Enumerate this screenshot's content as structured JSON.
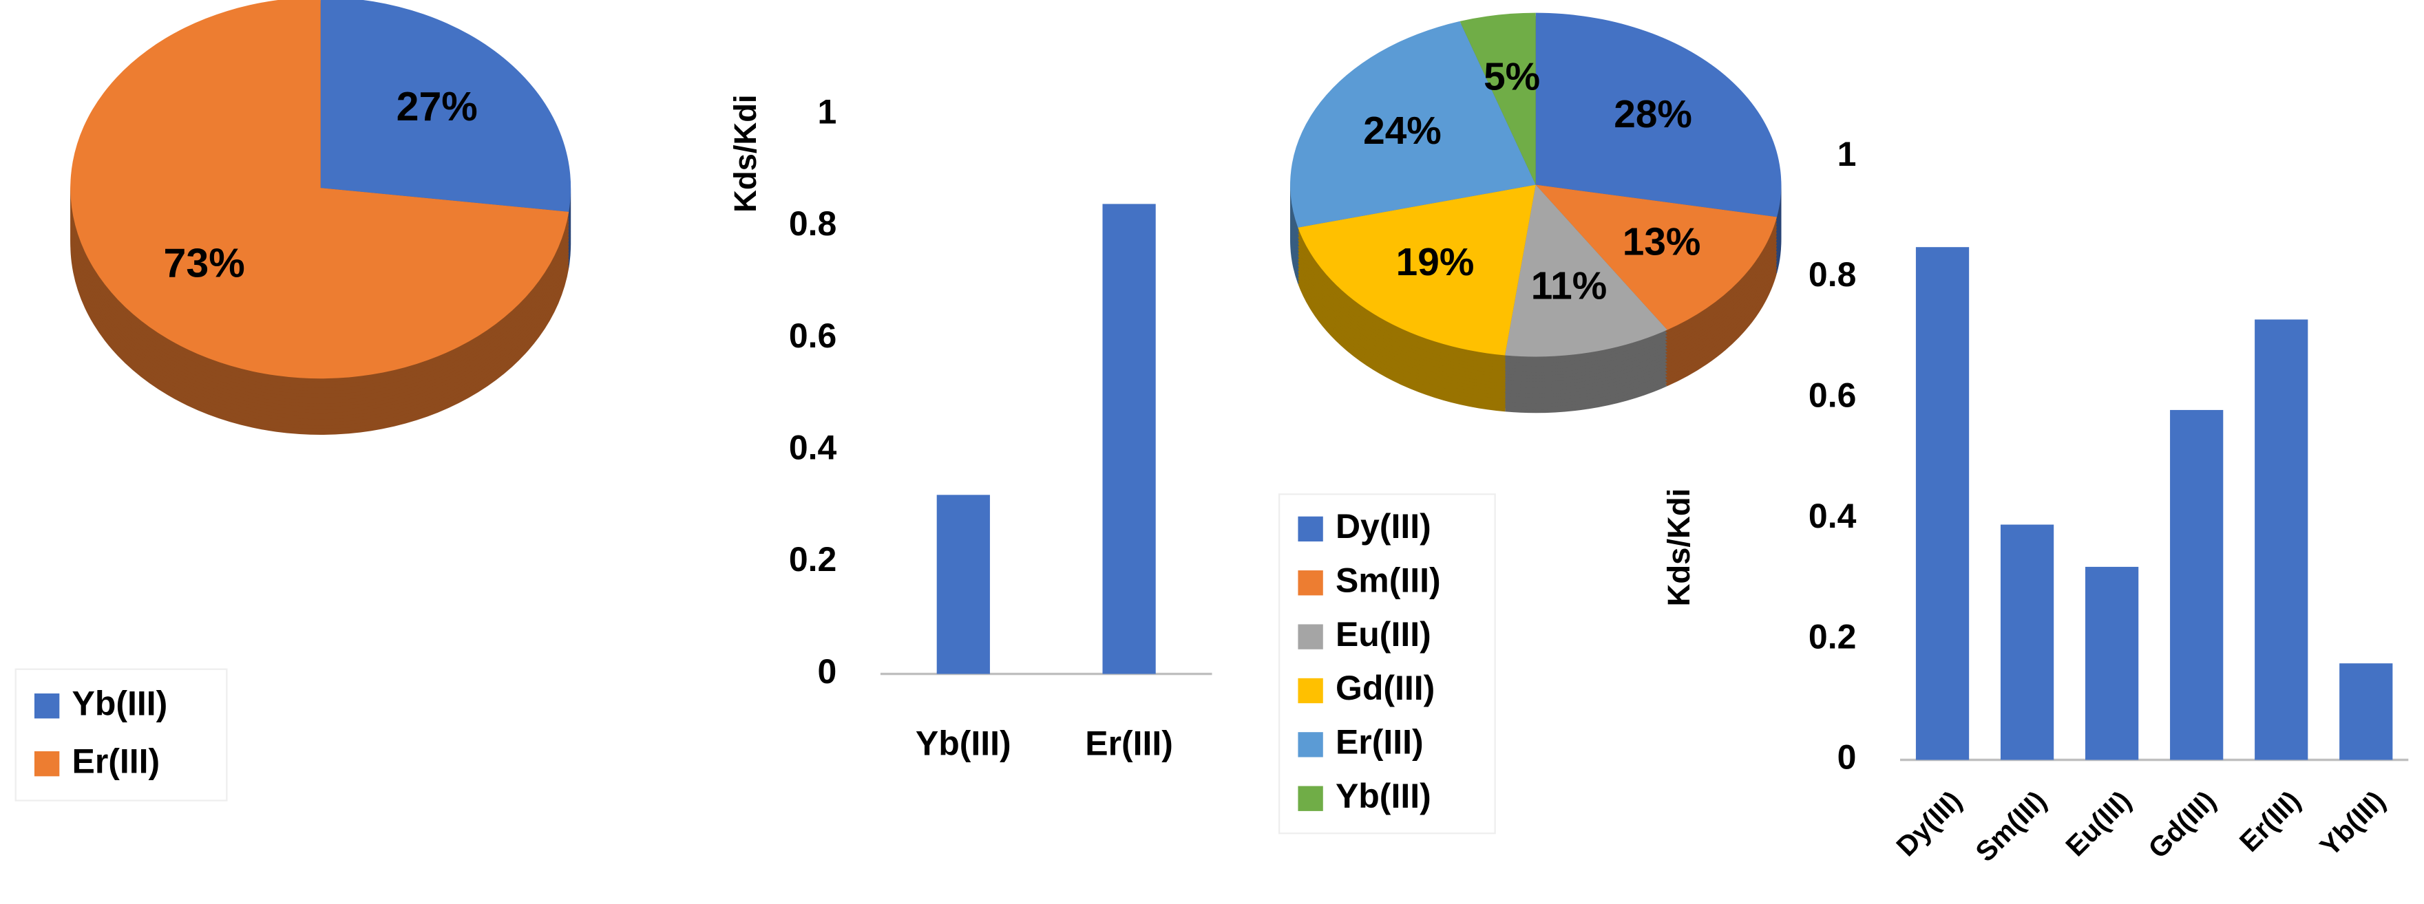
{
  "chart_data": [
    {
      "type": "pie",
      "categories": [
        "Yb(III)",
        "Er(III)"
      ],
      "values": [
        27,
        73
      ],
      "value_labels": [
        "27%",
        "73%"
      ],
      "colors": [
        "#4472c4",
        "#ed7d31"
      ]
    },
    {
      "type": "bar",
      "ylabel": "Kds/Kdi",
      "categories": [
        "Yb(III)",
        "Er(III)"
      ],
      "values": [
        0.32,
        0.84
      ],
      "color": "#4472c4",
      "ylim": [
        0,
        1
      ],
      "yticks": [
        0,
        0.2,
        0.4,
        0.6,
        0.8,
        1
      ]
    },
    {
      "type": "pie",
      "categories": [
        "Dy(III)",
        "Sm(III)",
        "Eu(III)",
        "Gd(III)",
        "Er(III)",
        "Yb(III)"
      ],
      "values": [
        28,
        13,
        11,
        19,
        24,
        5
      ],
      "value_labels": [
        "28%",
        "13%",
        "11%",
        "19%",
        "24%",
        "5%"
      ],
      "colors": [
        "#4472c4",
        "#ed7d31",
        "#a5a5a5",
        "#ffc000",
        "#5b9bd5",
        "#70ad47"
      ]
    },
    {
      "type": "bar",
      "ylabel": "Kds/Kdi",
      "categories": [
        "Dy(III)",
        "Sm(III)",
        "Eu(III)",
        "Gd(III)",
        "Er(III)",
        "Yb(III)"
      ],
      "values": [
        0.85,
        0.39,
        0.32,
        0.58,
        0.73,
        0.16
      ],
      "color": "#4472c4",
      "ylim": [
        0,
        1
      ],
      "yticks": [
        0,
        0.2,
        0.4,
        0.6,
        0.8,
        1
      ]
    }
  ]
}
